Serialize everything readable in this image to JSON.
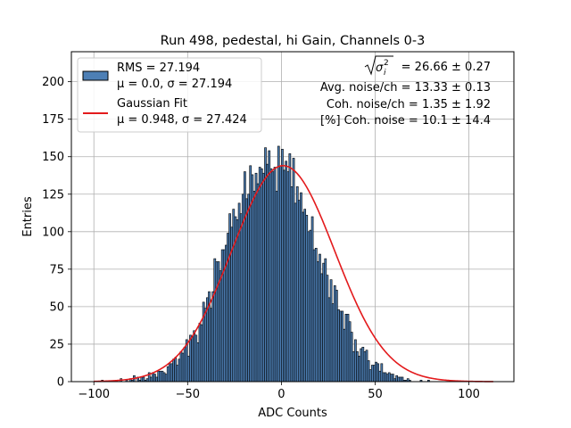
{
  "chart_data": {
    "type": "bar",
    "title": "Run 498, pedestal, hi Gain, Channels 0-3",
    "xlabel": "ADC Counts",
    "ylabel": "Entries",
    "xlim": [
      -112,
      124
    ],
    "ylim": [
      0,
      220
    ],
    "xticks": [
      -100,
      -50,
      0,
      50,
      100
    ],
    "yticks": [
      0,
      25,
      50,
      75,
      100,
      125,
      150,
      175,
      200
    ],
    "xtick_labels": [
      "−100",
      "−50",
      "0",
      "50",
      "100"
    ],
    "ytick_labels": [
      "0",
      "25",
      "50",
      "75",
      "100",
      "125",
      "150",
      "175",
      "200"
    ],
    "grid": true,
    "legend_position": "upper left",
    "histogram": {
      "name": "RMS = 27.194",
      "name_line2": "μ = 0.0, σ = 27.194",
      "color": "#4d7fb5",
      "edgecolor": "#000000",
      "bin_range": [
        -101,
        113
      ],
      "bin_width": 1,
      "counts": [
        0,
        0,
        0,
        0,
        0,
        1,
        0,
        0,
        0,
        0,
        0,
        0,
        0,
        0,
        0,
        2,
        0,
        0,
        1,
        0,
        2,
        1,
        4,
        0,
        3,
        1,
        3,
        3,
        1,
        2,
        6,
        3,
        6,
        5,
        3,
        7,
        7,
        7,
        6,
        5,
        10,
        12,
        12,
        15,
        16,
        11,
        15,
        20,
        19,
        23,
        28,
        17,
        31,
        30,
        34,
        31,
        26,
        39,
        38,
        53,
        49,
        56,
        60,
        49,
        60,
        82,
        80,
        80,
        74,
        88,
        88,
        91,
        99,
        112,
        103,
        115,
        110,
        108,
        119,
        112,
        125,
        140,
        122,
        125,
        144,
        138,
        127,
        139,
        132,
        143,
        142,
        139,
        156,
        145,
        154,
        142,
        140,
        143,
        127,
        157,
        144,
        155,
        141,
        147,
        140,
        152,
        130,
        149,
        119,
        130,
        121,
        126,
        113,
        115,
        111,
        100,
        101,
        110,
        88,
        89,
        80,
        85,
        72,
        79,
        82,
        71,
        56,
        68,
        52,
        64,
        61,
        48,
        47,
        47,
        35,
        45,
        45,
        40,
        33,
        20,
        28,
        20,
        17,
        22,
        23,
        20,
        21,
        14,
        8,
        11,
        11,
        13,
        12,
        7,
        12,
        6,
        6,
        5,
        6,
        5,
        5,
        2,
        4,
        3,
        3,
        3,
        1,
        1,
        2,
        1,
        0,
        0,
        0,
        0,
        0,
        1,
        0,
        0,
        0,
        1,
        0,
        0,
        0,
        0,
        0,
        0,
        0,
        0,
        0,
        0,
        0,
        0,
        0,
        0,
        0,
        0,
        0,
        0,
        0,
        0,
        0,
        0,
        0,
        0,
        0,
        0,
        0,
        0,
        0,
        0,
        0,
        0,
        0,
        0,
        0,
        0
      ]
    },
    "fit": {
      "name": "Gaussian Fit",
      "name_line2": "μ = 0.948, σ = 27.424",
      "color": "#e31a1c",
      "mu": 0.948,
      "sigma": 27.424,
      "amplitude": 144,
      "x_range": [
        -100,
        113
      ]
    },
    "annotations": {
      "line1_suffix": " = 26.66 ± 0.27",
      "line2": "Avg. noise/ch = 13.33 ± 0.13",
      "line3": "Coh. noise/ch = 1.35 ± 1.92",
      "line4": "[%] Coh. noise = 10.1 ± 14.4"
    }
  }
}
